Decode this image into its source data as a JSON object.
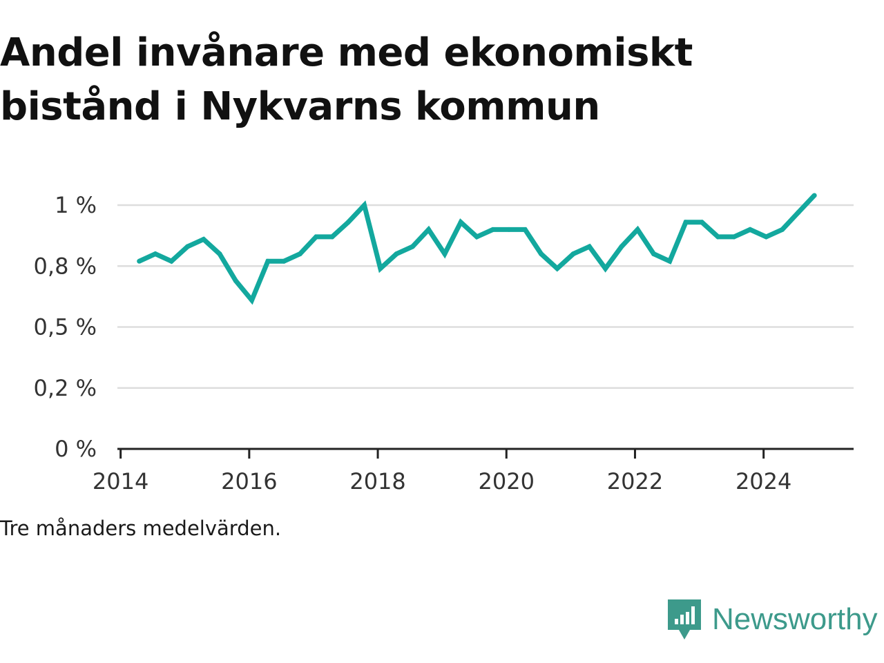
{
  "title": "Andel invånare med ekonomiskt bistånd i Nykvarns kommun",
  "note": "Tre månaders medelvärden.",
  "brand": {
    "name": "Newsworthy",
    "icon": "newsworthy-logo-icon",
    "color": "#3d9a8b"
  },
  "chart_data": {
    "type": "line",
    "title": "Andel invånare med ekonomiskt bistånd i Nykvarns kommun",
    "xlabel": "",
    "ylabel": "",
    "ylim": [
      0,
      1.02
    ],
    "xlim": [
      2013.95,
      2025.4
    ],
    "y_ticks": [
      {
        "value": 0,
        "label": "0 %"
      },
      {
        "value": 0.25,
        "label": "0,2 %"
      },
      {
        "value": 0.5,
        "label": "0,5 %"
      },
      {
        "value": 0.75,
        "label": "0,8 %"
      },
      {
        "value": 1.0,
        "label": "1 %"
      }
    ],
    "x_ticks": [
      {
        "value": 2014,
        "label": "2014"
      },
      {
        "value": 2016,
        "label": "2016"
      },
      {
        "value": 2018,
        "label": "2018"
      },
      {
        "value": 2020,
        "label": "2020"
      },
      {
        "value": 2022,
        "label": "2022"
      },
      {
        "value": 2024,
        "label": "2024"
      }
    ],
    "grid": true,
    "line_color": "#13a89e",
    "series": [
      {
        "x": [
          2014.29,
          2014.54,
          2014.79,
          2015.04,
          2015.29,
          2015.54,
          2015.79,
          2016.04,
          2016.29,
          2016.54,
          2016.79,
          2017.04,
          2017.29,
          2017.54,
          2017.79,
          2018.04,
          2018.29,
          2018.54,
          2018.79,
          2019.04,
          2019.29,
          2019.54,
          2019.79,
          2020.04,
          2020.29,
          2020.54,
          2020.79,
          2021.04,
          2021.29,
          2021.54,
          2021.79,
          2022.04,
          2022.29,
          2022.54,
          2022.79,
          2023.04,
          2023.29,
          2023.54,
          2023.79,
          2024.04,
          2024.29,
          2024.54,
          2024.79
        ],
        "values": [
          0.77,
          0.8,
          0.77,
          0.83,
          0.86,
          0.8,
          0.69,
          0.61,
          0.77,
          0.77,
          0.8,
          0.87,
          0.87,
          0.93,
          1.0,
          0.74,
          0.8,
          0.83,
          0.9,
          0.8,
          0.93,
          0.87,
          0.9,
          0.9,
          0.9,
          0.8,
          0.74,
          0.8,
          0.83,
          0.74,
          0.83,
          0.9,
          0.8,
          0.77,
          0.93,
          0.93,
          0.87,
          0.87,
          0.9,
          0.87,
          0.9,
          0.97,
          1.04
        ]
      }
    ]
  }
}
